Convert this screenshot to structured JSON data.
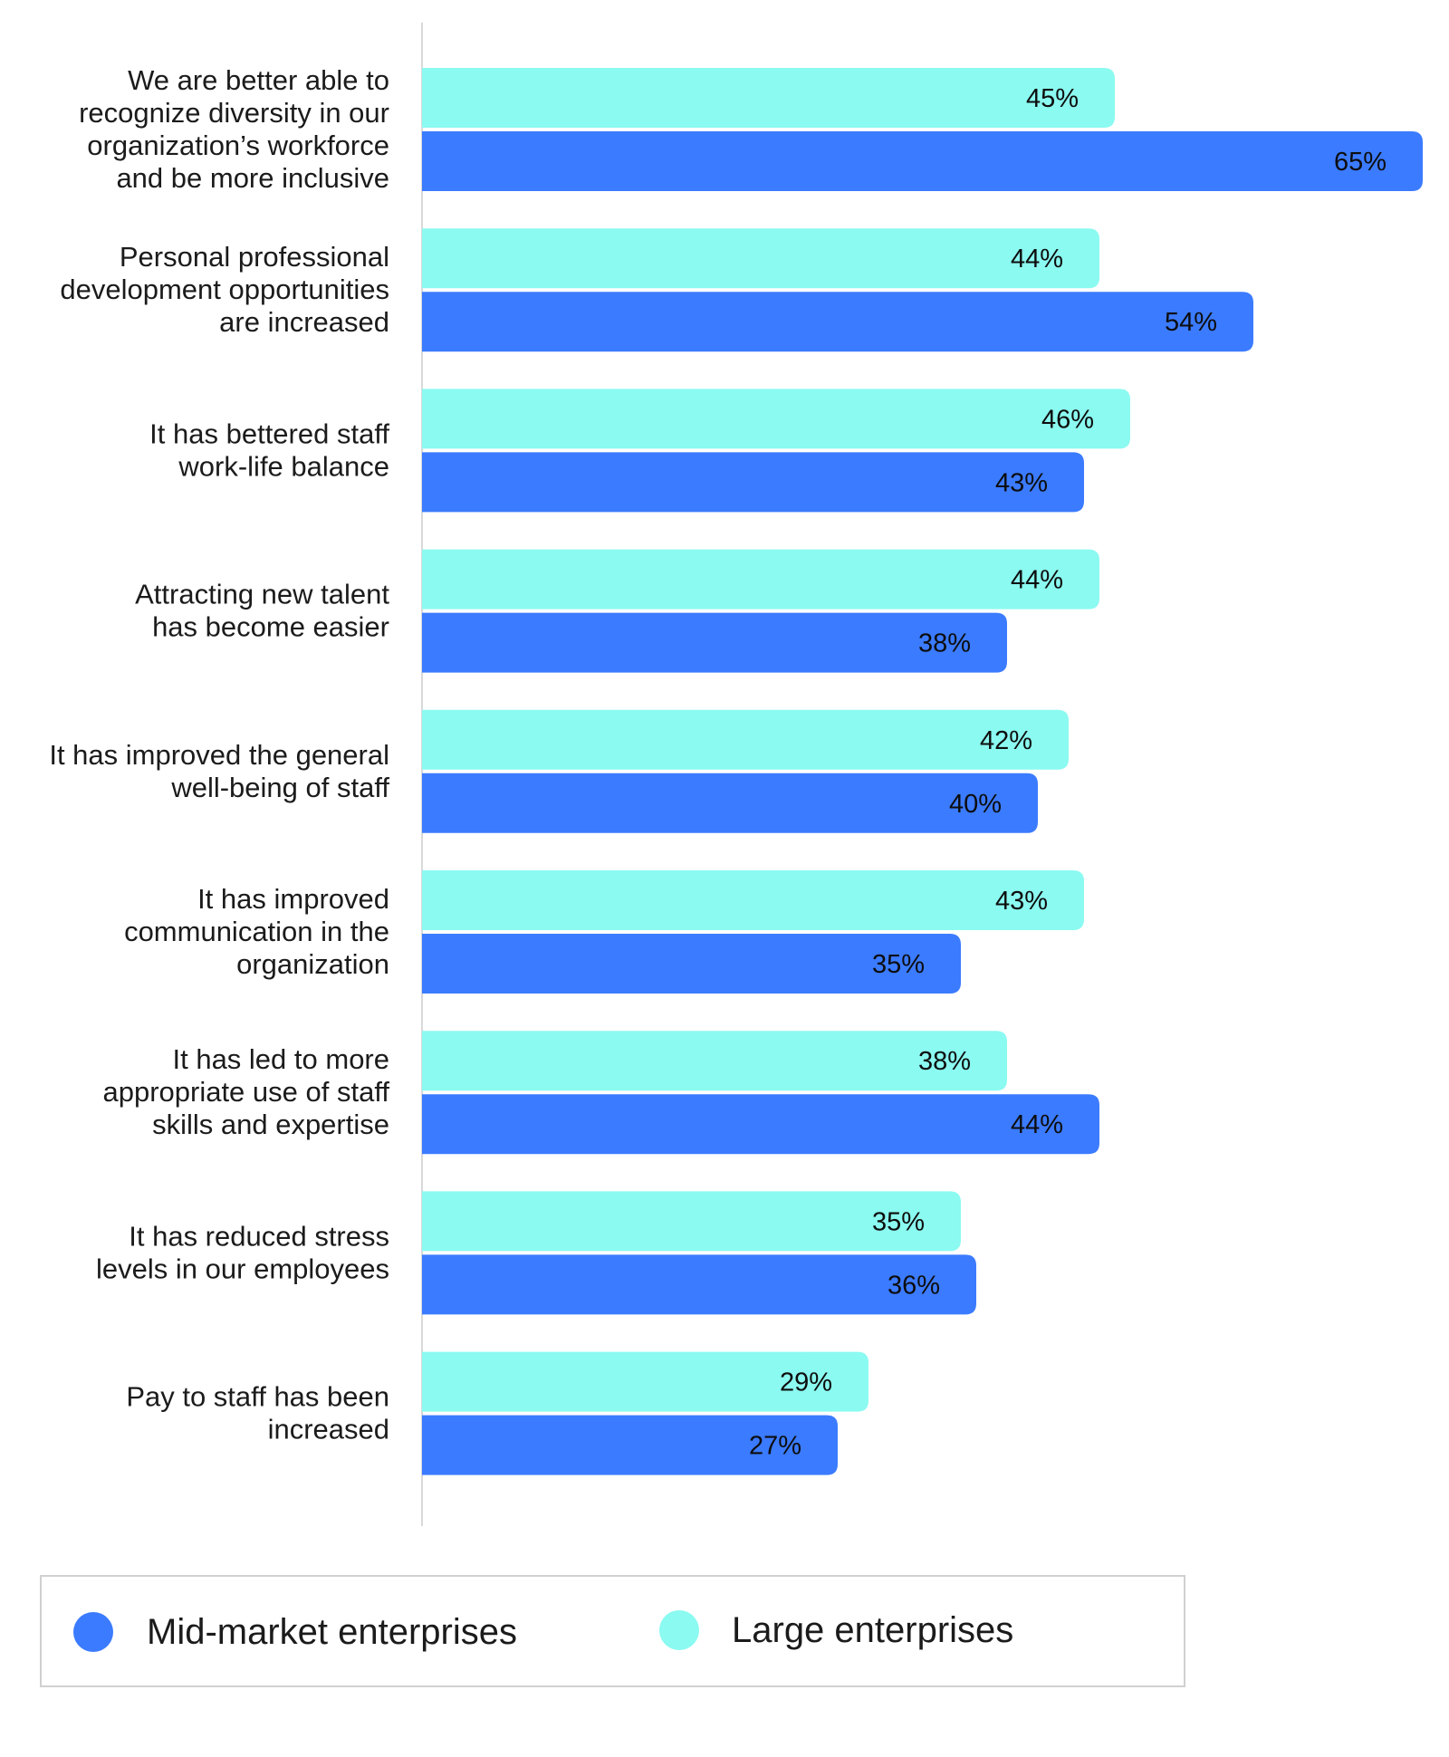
{
  "chart_data": {
    "type": "bar",
    "orientation": "horizontal",
    "categories": [
      "We are better able to recognize diversity in our organization’s workforce and be more inclusive",
      "Personal professional development opportunities are increased",
      "It has bettered staff work-life balance",
      "Attracting new talent has become easier",
      "It has improved the general well-being of staff",
      "It has improved communication in the organization",
      "It has led to more appropriate use of staff skills and expertise",
      "It has reduced stress levels in our employees",
      "Pay to staff has been increased"
    ],
    "category_lines": [
      [
        "We are better able to",
        "recognize diversity in our",
        "organization’s workforce",
        "and be more inclusive"
      ],
      [
        "Personal professional",
        "development opportunities",
        "are increased"
      ],
      [
        "It has bettered staff",
        "work-life balance"
      ],
      [
        "Attracting new talent",
        "has become easier"
      ],
      [
        "It has improved the general",
        "well-being of staff"
      ],
      [
        "It has improved",
        "communication in the",
        "organization"
      ],
      [
        "It has led to more",
        "appropriate use of staff",
        "skills and expertise"
      ],
      [
        "It has reduced stress",
        "levels in our employees"
      ],
      [
        "Pay to staff has been",
        "increased"
      ]
    ],
    "series": [
      {
        "name": "Large enterprises",
        "color": "#8bfaf1",
        "values": [
          45,
          44,
          46,
          44,
          42,
          43,
          38,
          35,
          29
        ]
      },
      {
        "name": "Mid-market enterprises",
        "color": "#3b7bff",
        "values": [
          65,
          54,
          43,
          38,
          40,
          35,
          44,
          36,
          27
        ]
      }
    ],
    "value_suffix": "%",
    "xlim": [
      0,
      65
    ],
    "grid": false,
    "legend": {
      "position": "bottom",
      "entries": [
        {
          "label": "Mid-market enterprises",
          "color": "#3b7bff"
        },
        {
          "label": "Large enterprises",
          "color": "#8bfaf1"
        }
      ]
    }
  }
}
